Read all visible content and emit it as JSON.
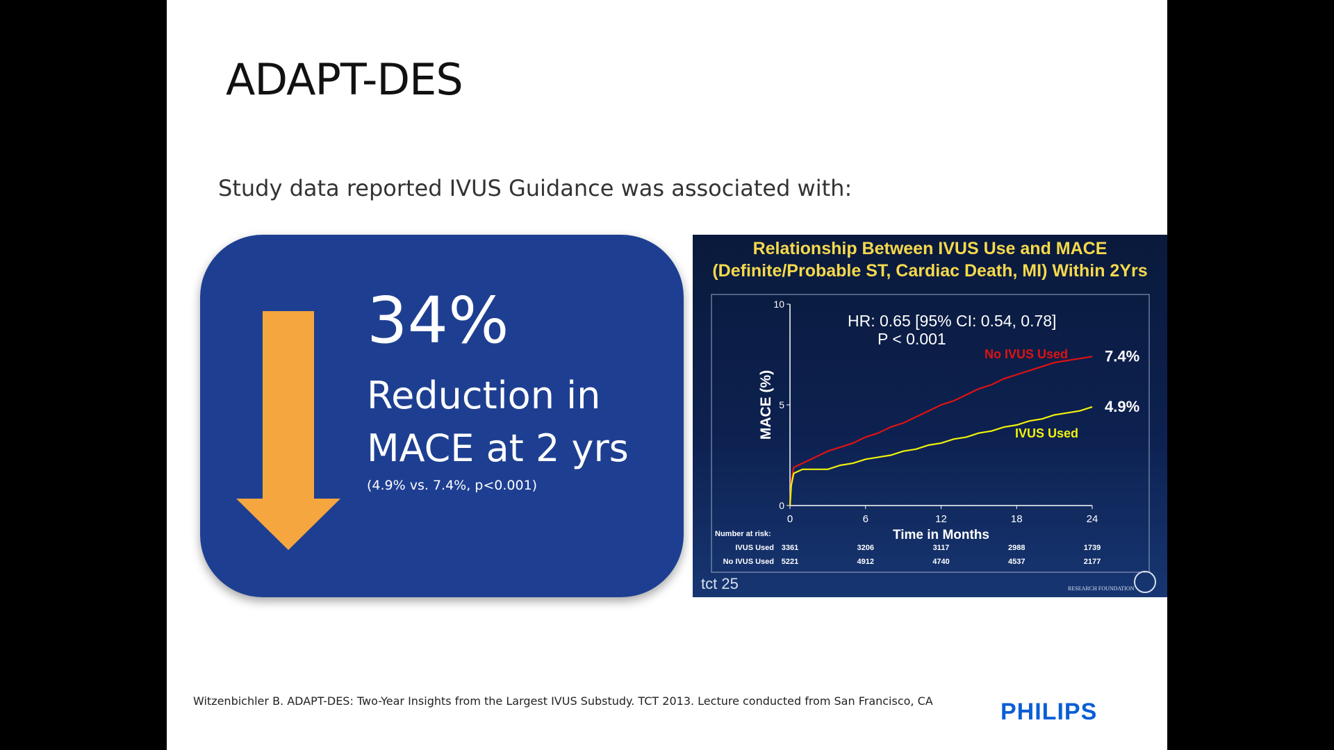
{
  "slide": {
    "title": "ADAPT-DES",
    "subtitle": "Study data reported IVUS Guidance was associated with:",
    "footer": "Witzenbichler B. ADAPT-DES: Two-Year Insights from the Largest IVUS Substudy. TCT 2013. Lecture conducted from San Francisco, CA",
    "logo": "PHILIPS"
  },
  "stat": {
    "percent": "34%",
    "line1": "Reduction in",
    "line2": "MACE at 2 yrs",
    "note": "(4.9% vs. 7.4%, p<0.001)"
  },
  "colors": {
    "box": "#1e3f91",
    "arrow": "#f5a63e",
    "no_ivus": "#e01212",
    "ivus": "#f2f20a",
    "chart_title": "#f5d94c"
  },
  "chart_data": {
    "type": "line",
    "title": "Relationship Between IVUS Use and MACE",
    "subtitle": "(Definite/Probable ST, Cardiac Death, MI) Within 2Yrs",
    "xlabel": "Time in Months",
    "ylabel": "MACE (%)",
    "xlim": [
      0,
      24
    ],
    "ylim": [
      0,
      10
    ],
    "xticks": [
      "0",
      "6",
      "12",
      "18",
      "24"
    ],
    "yticks": [
      "0",
      "5",
      "10"
    ],
    "annotation_hr": "HR: 0.65 [95% CI: 0.54, 0.78]",
    "annotation_p": "P < 0.001",
    "series": [
      {
        "name": "No IVUS Used",
        "end_label": "7.4%",
        "x": [
          0,
          0.1,
          0.3,
          1,
          2,
          3,
          4,
          5,
          6,
          7,
          8,
          9,
          10,
          11,
          12,
          13,
          14,
          15,
          16,
          17,
          18,
          19,
          20,
          21,
          22,
          23,
          24
        ],
        "y": [
          0,
          1.2,
          1.9,
          2.1,
          2.4,
          2.7,
          2.9,
          3.1,
          3.4,
          3.6,
          3.9,
          4.1,
          4.4,
          4.7,
          5.0,
          5.2,
          5.5,
          5.8,
          6.0,
          6.3,
          6.5,
          6.7,
          6.9,
          7.1,
          7.2,
          7.3,
          7.4
        ]
      },
      {
        "name": "IVUS Used",
        "end_label": "4.9%",
        "x": [
          0,
          0.1,
          0.3,
          1,
          2,
          3,
          4,
          5,
          6,
          7,
          8,
          9,
          10,
          11,
          12,
          13,
          14,
          15,
          16,
          17,
          18,
          19,
          20,
          21,
          22,
          23,
          24
        ],
        "y": [
          0,
          1.0,
          1.6,
          1.8,
          1.8,
          1.8,
          2.0,
          2.1,
          2.3,
          2.4,
          2.5,
          2.7,
          2.8,
          3.0,
          3.1,
          3.3,
          3.4,
          3.6,
          3.7,
          3.9,
          4.0,
          4.2,
          4.3,
          4.5,
          4.6,
          4.7,
          4.9
        ]
      }
    ],
    "risk_table": {
      "header": "Number at risk:",
      "rows": [
        {
          "label": "IVUS Used",
          "values": [
            "3361",
            "3206",
            "3117",
            "2988",
            "1739"
          ]
        },
        {
          "label": "No IVUS Used",
          "values": [
            "5221",
            "4912",
            "4740",
            "4537",
            "2177"
          ]
        }
      ]
    },
    "footer_marks": {
      "left": "tct 25",
      "right": "RESEARCH FOUNDATION"
    }
  }
}
